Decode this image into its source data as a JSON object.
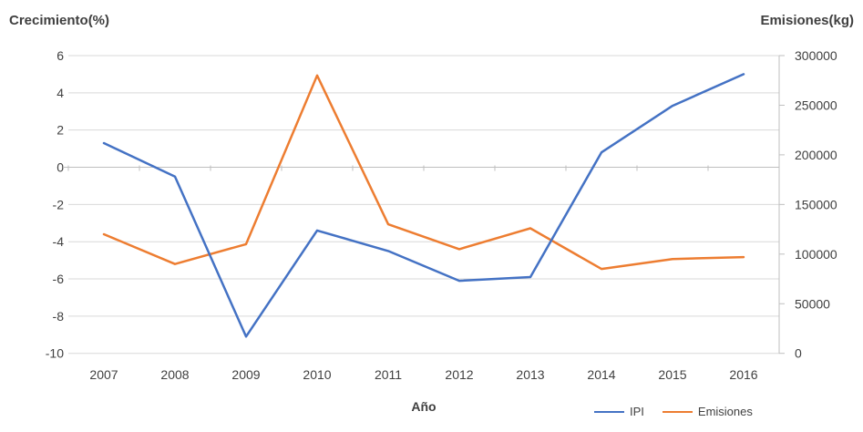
{
  "chart_data": {
    "type": "line",
    "title_left_axis": "Crecimiento(%)",
    "title_right_axis": "Emisiones(kg)",
    "xlabel": "Año",
    "categories": [
      "2007",
      "2008",
      "2009",
      "2010",
      "2011",
      "2012",
      "2013",
      "2014",
      "2015",
      "2016"
    ],
    "series": [
      {
        "name": "IPI",
        "axis": "left",
        "color": "#4472C4",
        "values": [
          1.3,
          -0.5,
          -9.1,
          -3.4,
          -4.5,
          -6.1,
          -5.9,
          0.8,
          3.3,
          5.0
        ]
      },
      {
        "name": "Emisiones",
        "axis": "right",
        "color": "#ED7D31",
        "values": [
          120000,
          90000,
          110000,
          280000,
          130000,
          105000,
          126000,
          85000,
          95000,
          97000
        ]
      }
    ],
    "left_axis": {
      "min": -10,
      "max": 6,
      "step": 2,
      "ticks": [
        "6",
        "4",
        "2",
        "0",
        "-2",
        "-4",
        "-6",
        "-8",
        "-10"
      ]
    },
    "right_axis": {
      "min": 0,
      "max": 300000,
      "step": 50000,
      "ticks": [
        "300000",
        "250000",
        "200000",
        "150000",
        "100000",
        "50000",
        "0"
      ]
    },
    "grid": true,
    "legend_position": "bottom-right",
    "colors": {
      "gridline": "#D9D9D9",
      "axis_line": "#BFBFBF",
      "text": "#404040",
      "series_ipi": "#4472C4",
      "series_emisiones": "#ED7D31"
    }
  }
}
